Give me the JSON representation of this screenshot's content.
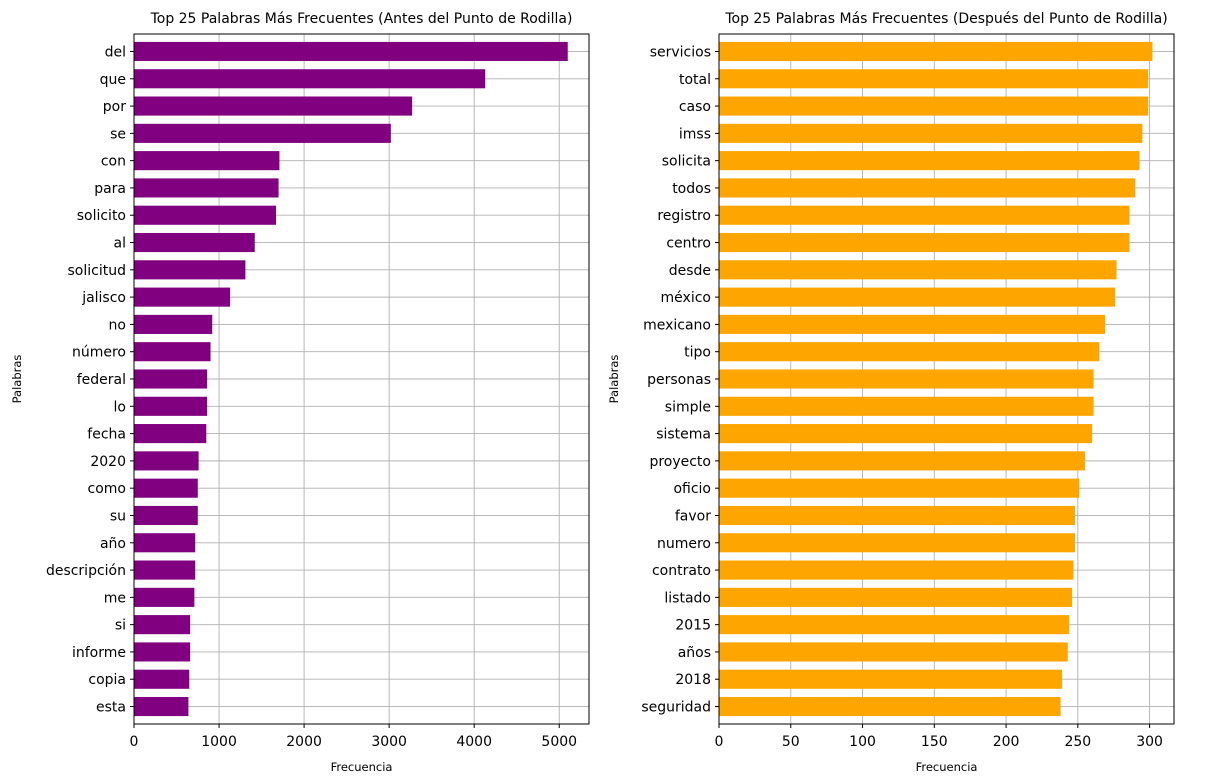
{
  "chart_data": [
    {
      "type": "bar",
      "orientation": "horizontal",
      "title": "Top 25 Palabras Más Frecuentes (Antes del Punto de Rodilla)",
      "xlabel": "Frecuencia",
      "ylabel": "Palabras",
      "xlim": [
        0,
        5350
      ],
      "xticks": [
        0,
        1000,
        2000,
        3000,
        4000,
        5000
      ],
      "grid": true,
      "color": "#800080",
      "categories": [
        "del",
        "que",
        "por",
        "se",
        "con",
        "para",
        "solicito",
        "al",
        "solicitud",
        "jalisco",
        "no",
        "número",
        "federal",
        "lo",
        "fecha",
        "2020",
        "como",
        "su",
        "año",
        "descripción",
        "me",
        "si",
        "informe",
        "copia",
        "esta"
      ],
      "values": [
        5100,
        4130,
        3270,
        3020,
        1710,
        1700,
        1670,
        1420,
        1310,
        1130,
        920,
        900,
        860,
        860,
        850,
        760,
        750,
        750,
        720,
        720,
        710,
        660,
        660,
        650,
        640
      ]
    },
    {
      "type": "bar",
      "orientation": "horizontal",
      "title": "Top 25 Palabras Más Frecuentes (Después del Punto de Rodilla)",
      "xlabel": "Frecuencia",
      "ylabel": "Palabras",
      "xlim": [
        0,
        317
      ],
      "xticks": [
        0,
        50,
        100,
        150,
        200,
        250,
        300
      ],
      "grid": true,
      "color": "#FFA500",
      "categories": [
        "servicios",
        "total",
        "caso",
        "imss",
        "solicita",
        "todos",
        "registro",
        "centro",
        "desde",
        "méxico",
        "mexicano",
        "tipo",
        "personas",
        "simple",
        "sistema",
        "proyecto",
        "oficio",
        "favor",
        "numero",
        "contrato",
        "listado",
        "2015",
        "años",
        "2018",
        "seguridad"
      ],
      "values": [
        302,
        299,
        299,
        295,
        293,
        290,
        286,
        286,
        277,
        276,
        269,
        265,
        261,
        261,
        260,
        255,
        251,
        248,
        248,
        247,
        246,
        244,
        243,
        239,
        238
      ]
    }
  ]
}
